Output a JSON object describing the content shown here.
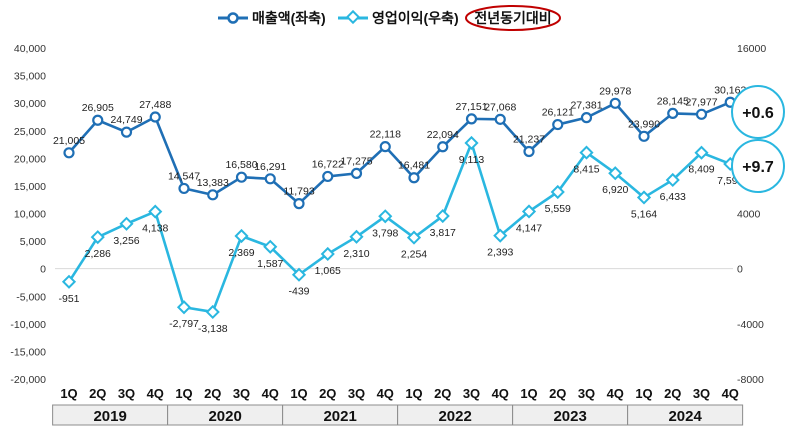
{
  "legend": {
    "revenue_label": "매출액(좌축)",
    "op_income_label": "영업이익(우축)",
    "yoy_label": "전년동기대비"
  },
  "badges": {
    "revenue_yoy": "+0.6",
    "op_income_yoy": "+9.7"
  },
  "colors": {
    "revenue": "#1f6fb5",
    "op_income": "#2ab7e0",
    "yoy_ellipse": "#c00000",
    "axis_text": "#333333"
  },
  "chart_data": {
    "type": "line",
    "categories": [
      "1Q",
      "2Q",
      "3Q",
      "4Q",
      "1Q",
      "2Q",
      "3Q",
      "4Q",
      "1Q",
      "2Q",
      "3Q",
      "4Q",
      "1Q",
      "2Q",
      "3Q",
      "4Q",
      "1Q",
      "2Q",
      "3Q",
      "4Q",
      "1Q",
      "2Q",
      "3Q",
      "4Q"
    ],
    "years": [
      "2019",
      "2020",
      "2021",
      "2022",
      "2023",
      "2024"
    ],
    "left_axis": {
      "ylim": [
        -20000,
        40000
      ],
      "ticks": [
        40000,
        35000,
        30000,
        25000,
        20000,
        15000,
        10000,
        5000,
        0,
        -5000,
        -10000,
        -15000,
        -20000
      ],
      "tick_labels": [
        "40,000",
        "35,000",
        "30,000",
        "25,000",
        "20,000",
        "15,000",
        "10,000",
        "5,000",
        "0",
        "-5,000",
        "-10,000",
        "-15,000",
        "-20,000"
      ]
    },
    "right_axis": {
      "ylim": [
        -8000,
        16000
      ],
      "ticks": [
        16000,
        12000,
        8000,
        4000,
        0,
        -4000,
        -8000
      ],
      "tick_labels": [
        "16000",
        "12000",
        "8000",
        "4000",
        "0",
        "-4000",
        "-8000"
      ]
    },
    "series": [
      {
        "name": "매출액(좌축)",
        "axis": "left",
        "values": [
          21005,
          26905,
          24749,
          27488,
          14547,
          13383,
          16580,
          16291,
          11793,
          16722,
          17275,
          22118,
          16481,
          22094,
          27151,
          27068,
          21237,
          26121,
          27381,
          29978,
          23990,
          28145,
          27977,
          30163
        ],
        "labels": [
          "21,005",
          "26,905",
          "24,749",
          "27,488",
          "14,547",
          "13,383",
          "16,580",
          "16,291",
          "11,793",
          "16,722",
          "17,275",
          "22,118",
          "16,481",
          "22,094",
          "27,151",
          "27,068",
          "21,237",
          "26,121",
          "27,381",
          "29,978",
          "23,990",
          "28,145",
          "27,977",
          "30,163"
        ]
      },
      {
        "name": "영업이익(우축)",
        "axis": "right",
        "values": [
          -951,
          2286,
          3256,
          4138,
          -2797,
          -3138,
          2369,
          1587,
          -439,
          1065,
          2310,
          3798,
          2254,
          3817,
          9113,
          2393,
          4147,
          5559,
          8415,
          6920,
          5164,
          6433,
          8409,
          7593
        ],
        "labels": [
          "-951",
          "2,286",
          "3,256",
          "4,138",
          "-2,797",
          "-3,138",
          "2,369",
          "1,587",
          "-439",
          "1,065",
          "2,310",
          "3,798",
          "2,254",
          "3,817",
          "9,113",
          "2,393",
          "4,147",
          "5,559",
          "8,415",
          "6,920",
          "5,164",
          "6,433",
          "8,409",
          "7,593"
        ]
      }
    ],
    "grid": false,
    "legend_position": "top-center"
  }
}
